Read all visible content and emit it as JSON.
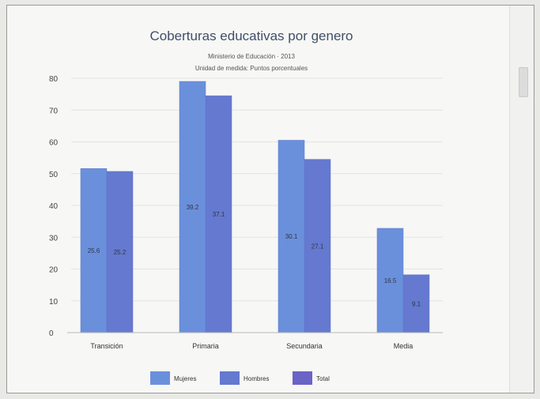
{
  "chart_data": {
    "type": "bar",
    "title": "Coberturas educativas por genero",
    "subtitle": "Ministerio de Educación · 2013",
    "subtitle2": "Unidad de medida: Puntos porcentuales",
    "categories": [
      "Transición",
      "Primaria",
      "Secundaria",
      "Media"
    ],
    "series": [
      {
        "name": "Mujeres",
        "values": [
          51.6,
          79.0,
          60.5,
          32.8
        ],
        "labels": [
          "25.6",
          "39.2",
          "30.1",
          "16.5"
        ],
        "color": "#6a90dc"
      },
      {
        "name": "Hombres",
        "values": [
          50.7,
          74.5,
          54.5,
          18.2
        ],
        "labels": [
          "25.2",
          "37.1",
          "27.1",
          "9.1"
        ],
        "color": "#6479cf"
      }
    ],
    "legend": [
      "Mujeres",
      "Hombres",
      "Total"
    ],
    "legend_colors": [
      "#6a90dc",
      "#6479cf",
      "#6c63c7"
    ],
    "ylim": [
      0,
      80
    ],
    "yticks": [
      0,
      10,
      20,
      30,
      40,
      50,
      60,
      70,
      80
    ],
    "grid": true,
    "legend_position": "bottom-center"
  }
}
